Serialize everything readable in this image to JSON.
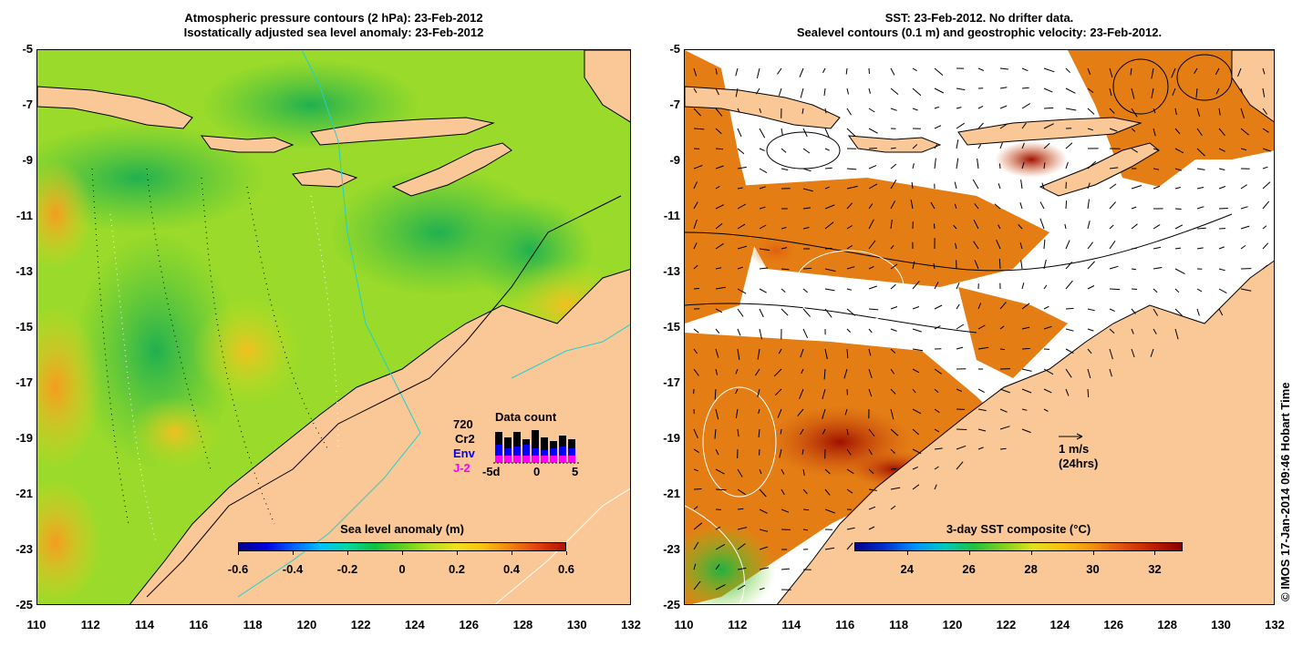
{
  "left_panel": {
    "title_line1": "Atmospheric pressure contours (2 hPa): 23-Feb-2012",
    "title_line2": "Isostatically adjusted sea level anomaly: 23-Feb-2012",
    "y_ticks": [
      "-5",
      "-7",
      "-9",
      "-11",
      "-13",
      "-15",
      "-17",
      "-19",
      "-21",
      "-23",
      "-25"
    ],
    "x_ticks": [
      "110",
      "112",
      "114",
      "116",
      "118",
      "120",
      "122",
      "124",
      "126",
      "128",
      "130",
      "132"
    ],
    "colorbar": {
      "title": "Sea level anomaly (m)",
      "ticks": [
        "-0.6",
        "-0.4",
        "-0.2",
        "0",
        "0.2",
        "0.4",
        "0.6"
      ],
      "min": -0.6,
      "max": 0.6
    },
    "data_count": {
      "title": "Data count",
      "total": "720",
      "series": [
        {
          "name": "Cr2",
          "color": "#000000"
        },
        {
          "name": "Env",
          "color": "#0000ff"
        },
        {
          "name": "J-2",
          "color": "#ff00ff"
        }
      ],
      "x_ticks": [
        "-5d",
        "0",
        "5"
      ]
    }
  },
  "right_panel": {
    "title_line1": "SST: 23-Feb-2012. No drifter data.",
    "title_line2": "Sealevel contours (0.1 m) and geostrophic velocity: 23-Feb-2012.",
    "y_ticks": [
      "-5",
      "-7",
      "-9",
      "-11",
      "-13",
      "-15",
      "-17",
      "-19",
      "-21",
      "-23",
      "-25"
    ],
    "x_ticks": [
      "110",
      "112",
      "114",
      "116",
      "118",
      "120",
      "122",
      "124",
      "126",
      "128",
      "130",
      "132"
    ],
    "colorbar": {
      "title": "3-day SST composite (°C)",
      "ticks": [
        "24",
        "26",
        "28",
        "30",
        "32"
      ],
      "min": 22.3,
      "max": 32.9
    },
    "velocity_scale": {
      "label_line1": "1 m/s",
      "label_line2": "(24hrs)"
    }
  },
  "copyright": "© IMOS 17-Jan-2014 09:46 Hobart Time",
  "colors": {
    "land": "#fac896",
    "no_data": "#ffffff"
  }
}
